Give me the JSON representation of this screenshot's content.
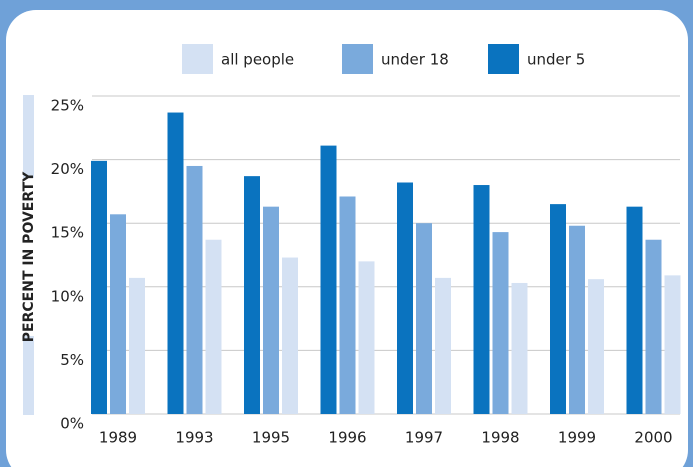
{
  "chart_data": {
    "type": "bar",
    "y_label": "PERCENT IN POVERTY",
    "categories": [
      "1989",
      "1993",
      "1995",
      "1996",
      "1997",
      "1998",
      "1999",
      "2000"
    ],
    "series": [
      {
        "name": "all people",
        "color": "#d4e1f3",
        "values": [
          10.7,
          13.7,
          12.3,
          12.0,
          10.7,
          10.3,
          10.6,
          10.9
        ]
      },
      {
        "name": "under 18",
        "color": "#7aaadc",
        "values": [
          15.7,
          19.5,
          16.3,
          17.1,
          15.0,
          14.3,
          14.8,
          13.7
        ]
      },
      {
        "name": "under 5",
        "color": "#0a73bf",
        "values": [
          19.9,
          23.7,
          18.7,
          21.1,
          18.2,
          18.0,
          16.5,
          16.3
        ]
      }
    ],
    "ylim": [
      0,
      25
    ],
    "yticks": [
      {
        "value": 0,
        "label": "0%"
      },
      {
        "value": 5,
        "label": "5%"
      },
      {
        "value": 10,
        "label": "10%"
      },
      {
        "value": 15,
        "label": "15%"
      },
      {
        "value": 20,
        "label": "20%"
      },
      {
        "value": 25,
        "label": "25%"
      }
    ],
    "grid": true
  }
}
